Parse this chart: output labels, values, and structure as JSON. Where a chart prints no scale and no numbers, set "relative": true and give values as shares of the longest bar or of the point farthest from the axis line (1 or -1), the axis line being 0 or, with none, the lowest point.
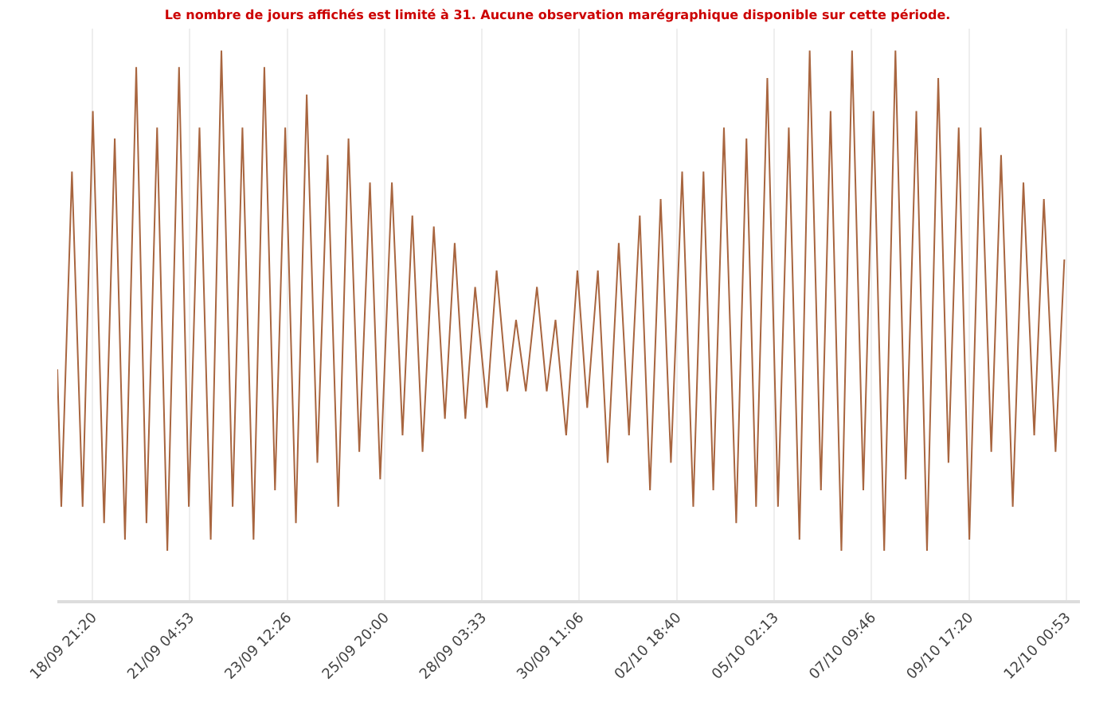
{
  "chart_data": {
    "type": "line",
    "title": "Le nombre de jours affichés est limité à 31. Aucune observation marégraphique disponible sur cette période.",
    "relative": true,
    "grid": "x",
    "marker": "none",
    "line_style": "solid",
    "xlim": [
      "--09-18T01:20",
      "--10-12T08:40"
    ],
    "xticks": [
      {
        "value": "--09-18T21:20",
        "label": "18/09 21:20"
      },
      {
        "value": "--09-21T04:53",
        "label": "21/09 04:53"
      },
      {
        "value": "--09-23T12:26",
        "label": "23/09 12:26"
      },
      {
        "value": "--09-25T20:00",
        "label": "25/09 20:00"
      },
      {
        "value": "--09-28T03:33",
        "label": "28/09 03:33"
      },
      {
        "value": "--09-30T11:06",
        "label": "30/09 11:06"
      },
      {
        "value": "--10-02T18:40",
        "label": "02/10 18:40"
      },
      {
        "value": "--10-05T02:13",
        "label": "05/10 02:13"
      },
      {
        "value": "--10-07T09:46",
        "label": "07/10 09:46"
      },
      {
        "value": "--10-09T17:20",
        "label": "09/10 17:20"
      },
      {
        "value": "--10-12T00:53",
        "label": "12/10 00:53"
      }
    ],
    "x": [
      "--09-18T01:20",
      "--09-18T03:35",
      "--09-18T09:40",
      "--09-18T15:45",
      "--09-18T21:35",
      "--09-19T04:00",
      "--09-19T10:05",
      "--09-19T15:55",
      "--09-19T22:20",
      "--09-20T04:10",
      "--09-20T10:15",
      "--09-20T16:05",
      "--09-20T22:45",
      "--09-21T04:20",
      "--09-21T10:25",
      "--09-21T16:50",
      "--09-21T22:55",
      "--09-22T05:20",
      "--09-22T10:55",
      "--09-22T17:15",
      "--09-22T23:25",
      "--09-23T05:30",
      "--09-23T11:20",
      "--09-23T17:25",
      "--09-23T23:35",
      "--09-24T05:40",
      "--09-24T11:30",
      "--09-24T17:35",
      "--09-24T23:25",
      "--09-25T05:35",
      "--09-25T11:40",
      "--09-25T17:30",
      "--09-26T00:10",
      "--09-26T06:15",
      "--09-26T11:50",
      "--09-26T17:40",
      "--09-27T00:05",
      "--09-27T06:25",
      "--09-27T12:00",
      "--09-27T18:05",
      "--09-27T23:40",
      "--09-28T06:20",
      "--09-28T11:55",
      "--09-28T18:00",
      "--09-28T23:00",
      "--09-29T04:35",
      "--09-29T10:55",
      "--09-29T16:30",
      "--09-29T21:30",
      "--09-30T03:35",
      "--09-30T10:00",
      "--09-30T15:35",
      "--09-30T21:40",
      "--10-01T03:15",
      "--10-01T09:35",
      "--10-01T15:25",
      "--10-01T21:35",
      "--10-02T03:25",
      "--10-02T09:30",
      "--10-02T15:20",
      "--10-02T21:45",
      "--10-03T04:05",
      "--10-03T09:55",
      "--10-03T15:30",
      "--10-03T21:35",
      "--10-04T04:35",
      "--10-04T10:25",
      "--10-04T15:55",
      "--10-04T22:20",
      "--10-05T04:25",
      "--10-05T10:35",
      "--10-05T16:40",
      "--10-05T22:30",
      "--10-06T04:55",
      "--10-06T10:25",
      "--10-06T16:35",
      "--10-06T22:40",
      "--10-07T05:05",
      "--10-07T10:55",
      "--10-07T17:00",
      "--10-07T23:25",
      "--10-08T05:15",
      "--10-08T11:20",
      "--10-08T17:25",
      "--10-08T23:50",
      "--10-09T05:40",
      "--10-09T11:30",
      "--10-09T17:35",
      "--10-10T00:00",
      "--10-10T06:05",
      "--10-10T11:40",
      "--10-10T18:20",
      "--10-11T00:25",
      "--10-11T06:35",
      "--10-11T12:05",
      "--10-11T18:45",
      "--10-11T23:45"
    ],
    "series": [
      {
        "color": "#a8653f",
        "values": [
          0.42,
          0.17,
          0.78,
          0.17,
          0.89,
          0.14,
          0.84,
          0.11,
          0.97,
          0.14,
          0.86,
          0.09,
          0.97,
          0.17,
          0.86,
          0.11,
          1,
          0.17,
          0.86,
          0.11,
          0.97,
          0.2,
          0.86,
          0.14,
          0.92,
          0.25,
          0.81,
          0.17,
          0.84,
          0.27,
          0.76,
          0.22,
          0.76,
          0.3,
          0.7,
          0.27,
          0.68,
          0.33,
          0.65,
          0.33,
          0.57,
          0.35,
          0.6,
          0.38,
          0.51,
          0.38,
          0.57,
          0.38,
          0.51,
          0.3,
          0.6,
          0.35,
          0.6,
          0.25,
          0.65,
          0.3,
          0.7,
          0.2,
          0.73,
          0.25,
          0.78,
          0.17,
          0.78,
          0.2,
          0.86,
          0.14,
          0.84,
          0.17,
          0.95,
          0.17,
          0.86,
          0.11,
          1,
          0.2,
          0.89,
          0.09,
          1,
          0.2,
          0.89,
          0.09,
          1,
          0.22,
          0.89,
          0.09,
          0.95,
          0.25,
          0.86,
          0.11,
          0.86,
          0.27,
          0.81,
          0.17,
          0.76,
          0.3,
          0.73,
          0.27,
          0.62
        ]
      }
    ]
  }
}
